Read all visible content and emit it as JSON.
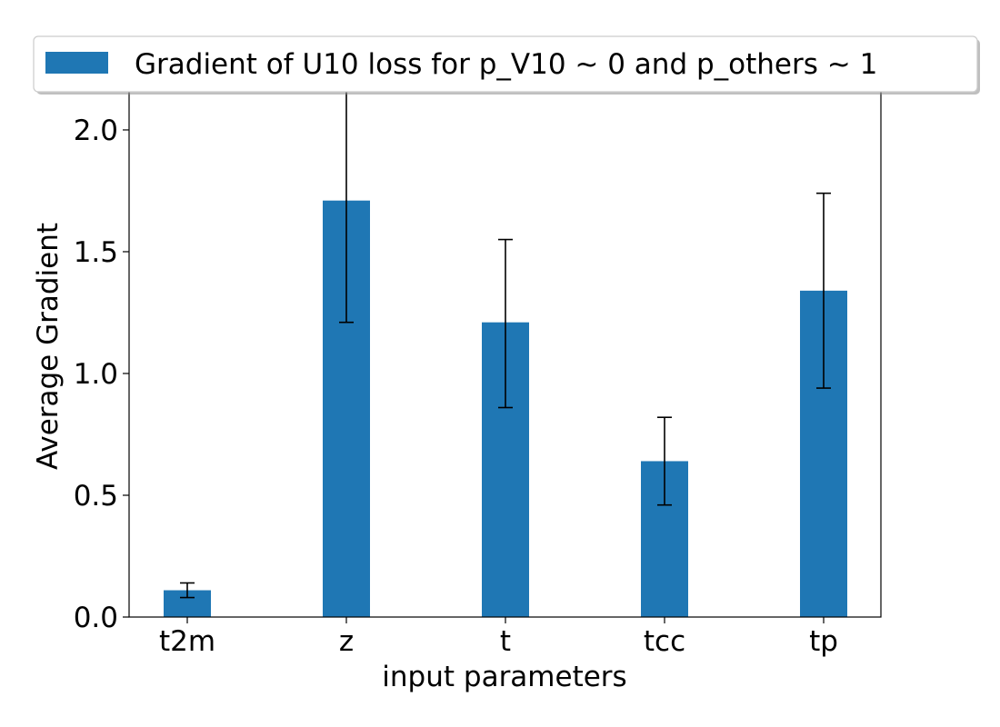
{
  "chart_data": {
    "type": "bar",
    "categories": [
      "t2m",
      "z",
      "t",
      "tcc",
      "tp"
    ],
    "series": [
      {
        "name": "Gradient of U10 loss for p_V10 ~ 0 and p_others ~ 1",
        "values": [
          0.11,
          1.71,
          1.21,
          0.64,
          1.34
        ],
        "error_low": [
          0.08,
          1.21,
          0.86,
          0.46,
          0.94
        ],
        "error_high": [
          0.14,
          2.21,
          1.55,
          0.82,
          1.74
        ],
        "color": "#1f77b4"
      }
    ],
    "xlabel": "input parameters",
    "ylabel": "Average Gradient",
    "ylim": [
      0,
      2.22
    ],
    "yticks": [
      0.0,
      0.5,
      1.0,
      1.5,
      2.0
    ],
    "ytick_labels": [
      "0.0",
      "0.5",
      "1.0",
      "1.5",
      "2.0"
    ],
    "grid": false,
    "legend_position": "top-center"
  }
}
